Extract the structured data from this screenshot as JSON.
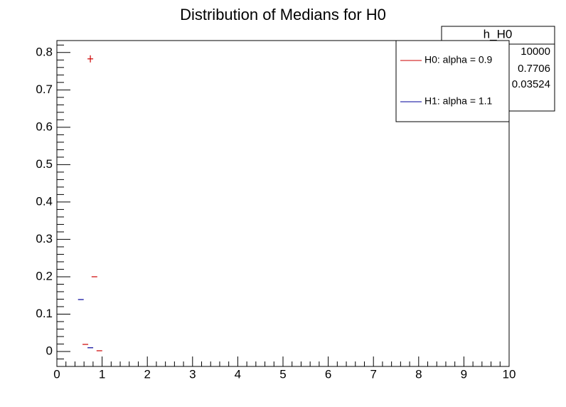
{
  "chart_data": {
    "type": "scatter",
    "title": "Distribution of Medians for H0",
    "series": [
      {
        "name": "H0: alpha = 0.9",
        "color": "#cc0000",
        "x": [
          0.63,
          0.74,
          0.83,
          0.94
        ],
        "values": [
          0.019,
          0.783,
          0.2,
          0.002
        ]
      },
      {
        "name": "H1: alpha = 1.1",
        "color": "#000099",
        "x": [
          0.53,
          0.74
        ],
        "values": [
          0.139,
          0.01
        ]
      }
    ],
    "xlim": [
      0,
      10
    ],
    "xticks": [
      0,
      1,
      2,
      3,
      4,
      5,
      6,
      7,
      8,
      9,
      10
    ],
    "ylim": [
      -0.04,
      0.832
    ],
    "yticks": [
      0,
      0.1,
      0.2,
      0.3,
      0.4,
      0.5,
      0.6,
      0.7,
      0.8
    ],
    "legend": "top-right",
    "stats": {
      "title": "h_H0",
      "values": [
        "10000",
        "0.7706",
        "0.03524"
      ]
    }
  }
}
